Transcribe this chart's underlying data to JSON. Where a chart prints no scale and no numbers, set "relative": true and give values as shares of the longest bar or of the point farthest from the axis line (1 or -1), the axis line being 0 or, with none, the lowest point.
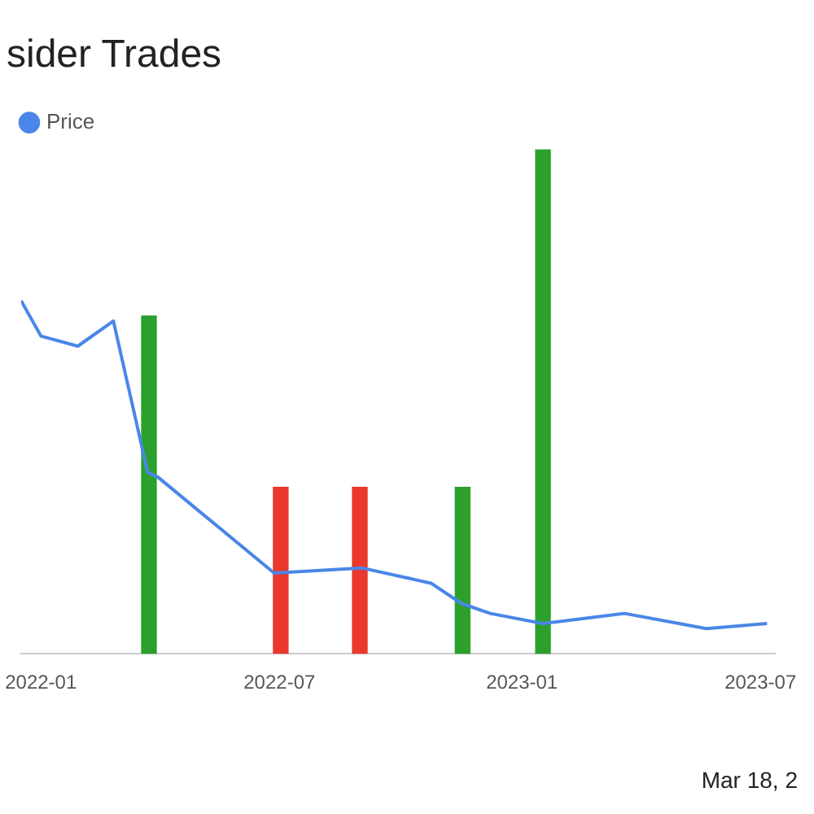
{
  "chart_data": {
    "type": "bar",
    "title": "sider Trades",
    "relative": true,
    "legend": "top left",
    "xlim": [
      "2021-12-17",
      "2023-07-12"
    ],
    "xticks": [
      {
        "value": "2022-01",
        "label": "2022-01"
      },
      {
        "value": "2022-07",
        "label": "2022-07"
      },
      {
        "value": "2023-01",
        "label": "2023-01"
      },
      {
        "value": "2023-07",
        "label": "2023-07"
      }
    ],
    "annotations": [
      "Mar 18, 2"
    ],
    "series": [
      {
        "x": [
          "2022-03-24",
          "2022-07-02",
          "2022-08-31",
          "2022-11-17",
          "2023-01-17"
        ],
        "values": [
          0.67,
          0.33,
          0.33,
          0.33,
          1
        ],
        "colors": [
          "#2ca02c",
          "#e8392c",
          "#e8392c",
          "#2ca02c",
          "#2ca02c"
        ]
      },
      {
        "type": "line",
        "name": "Price",
        "color": "#4a86e8",
        "x": [
          "2021-12-17",
          "2022-01-01",
          "2022-01-29",
          "2022-02-25",
          "2022-03-23",
          "2022-03-31",
          "2022-06-27",
          "2022-09-02",
          "2022-10-24",
          "2022-11-16",
          "2022-12-08",
          "2023-01-17",
          "2023-03-20",
          "2023-05-21",
          "2023-07-06"
        ],
        "values": [
          0.7,
          0.63,
          0.61,
          0.66,
          0.36,
          0.35,
          0.16,
          0.17,
          0.14,
          0.1,
          0.08,
          0.06,
          0.08,
          0.05,
          0.06
        ]
      }
    ]
  }
}
